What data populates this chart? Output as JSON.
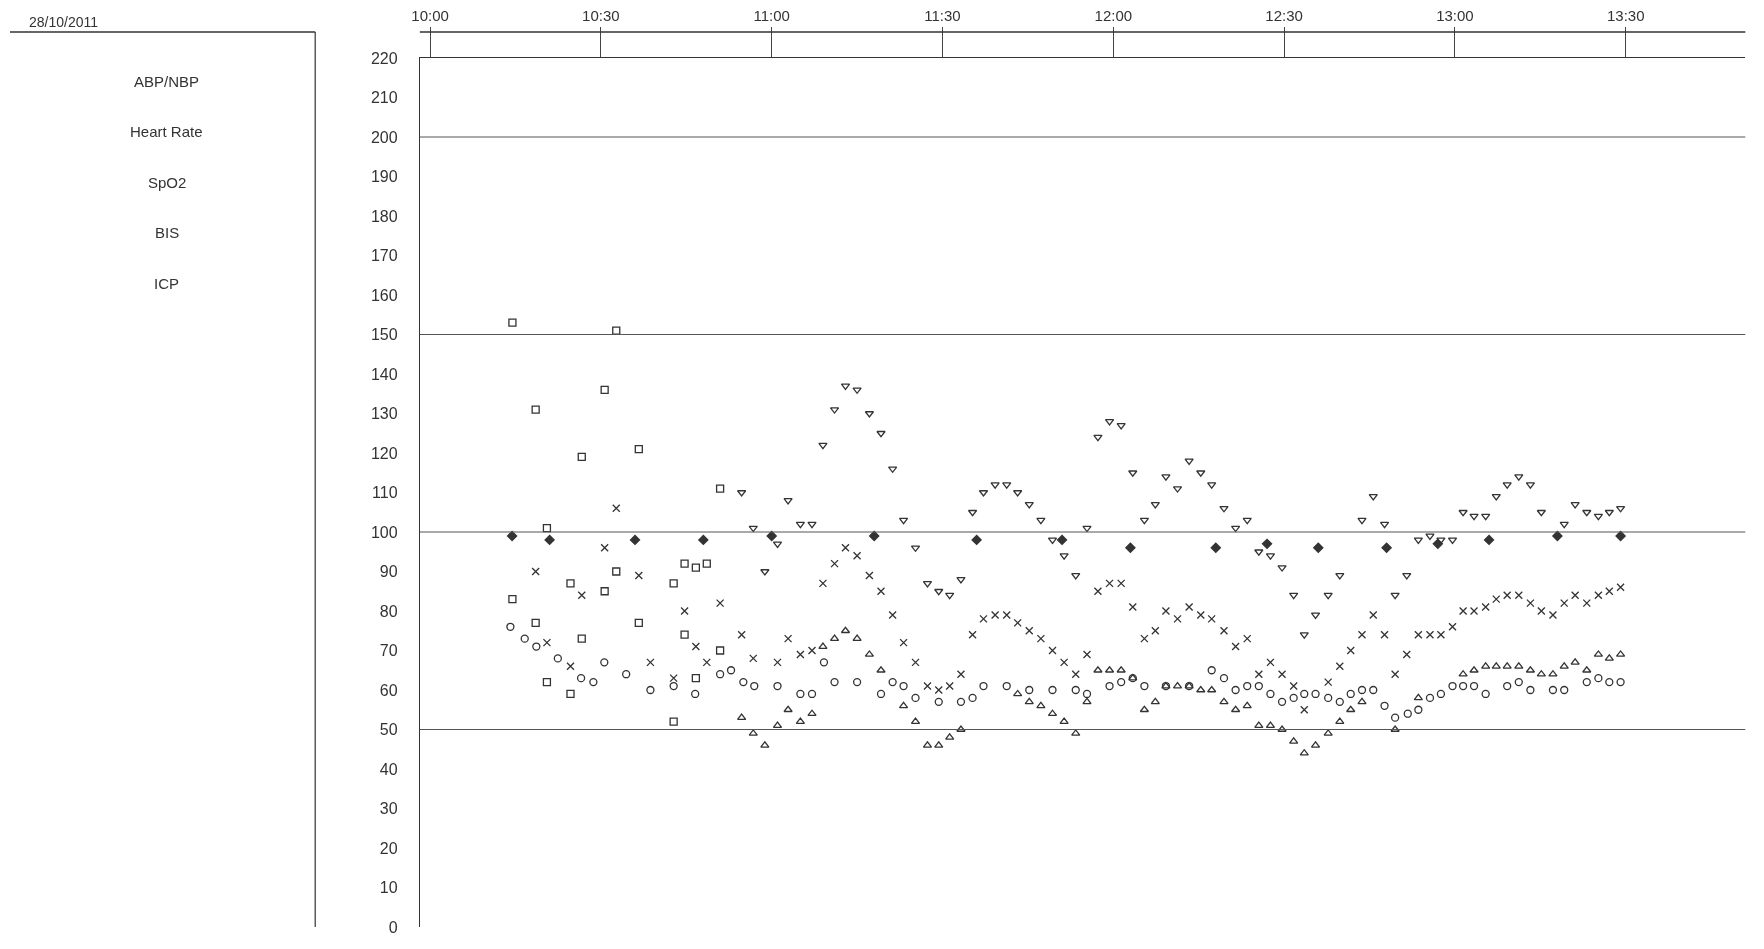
{
  "chart_data": {
    "type": "scatter",
    "annotations": [
      "28/10/2011",
      "ABP/NBP",
      "Heart Rate",
      "SpO2",
      "BIS",
      "ICP"
    ],
    "xlim": [
      9.97,
      13.85
    ],
    "xticks": [
      {
        "value": 10,
        "label": "10:00"
      },
      {
        "value": 10.5,
        "label": "10:30"
      },
      {
        "value": 11,
        "label": "11:00"
      },
      {
        "value": 11.5,
        "label": "11:30"
      },
      {
        "value": 12,
        "label": "12:00"
      },
      {
        "value": 12.5,
        "label": "12:30"
      },
      {
        "value": 13,
        "label": "13:00"
      },
      {
        "value": 13.5,
        "label": "13:30"
      }
    ],
    "ylim": [
      0,
      220
    ],
    "yticks": [
      0,
      10,
      20,
      30,
      40,
      50,
      60,
      70,
      80,
      90,
      100,
      110,
      120,
      130,
      140,
      150,
      160,
      170,
      180,
      190,
      200,
      210,
      220
    ],
    "grid": false,
    "ref_lines": [
      {
        "axis": "y",
        "value": 50,
        "color": "#555555"
      },
      {
        "axis": "y",
        "value": 100,
        "color": "#555555"
      },
      {
        "axis": "y",
        "value": 150,
        "color": "#555555"
      },
      {
        "axis": "y",
        "value": 200,
        "color": "#555555"
      }
    ],
    "series": [
      {
        "color": "#333333",
        "marker": "triangle-down",
        "x": [
          10.912,
          10.946,
          10.98,
          11.017,
          11.048,
          11.084,
          11.118,
          11.15,
          11.184,
          11.216,
          11.25,
          11.286,
          11.32,
          11.354,
          11.386,
          11.421,
          11.456,
          11.489,
          11.521,
          11.554,
          11.588,
          11.62,
          11.654,
          11.688,
          11.72,
          11.754,
          11.788,
          11.822,
          11.856,
          11.89,
          11.923,
          11.955,
          11.989,
          12.023,
          12.057,
          12.091,
          12.123,
          12.154,
          12.188,
          12.222,
          12.256,
          12.288,
          12.324,
          12.358,
          12.392,
          12.426,
          12.46,
          12.494,
          12.528,
          12.559,
          12.592,
          12.629,
          12.663,
          12.695,
          12.728,
          12.761,
          12.794,
          12.825,
          12.859,
          12.893,
          12.927,
          12.959,
          12.993,
          13.024,
          13.056,
          13.09,
          13.121,
          13.153,
          13.187,
          13.221,
          13.253,
          13.287,
          13.32,
          13.352,
          13.386,
          13.42,
          13.452,
          13.485
        ],
        "values": [
          110,
          101,
          90,
          97,
          108,
          102,
          102,
          122,
          131,
          137,
          136,
          130,
          125,
          116,
          103,
          96,
          87,
          85,
          84,
          88,
          105,
          110,
          112,
          112,
          110,
          107,
          103,
          98,
          94,
          89,
          101,
          124,
          128,
          127,
          115,
          103,
          107,
          114,
          111,
          118,
          115,
          112,
          106,
          101,
          103,
          95,
          94,
          91,
          84,
          74,
          79,
          84,
          89,
          null,
          103,
          109,
          102,
          84,
          89,
          98,
          99,
          98,
          98,
          105,
          104,
          104,
          109,
          112,
          114,
          112,
          105,
          null,
          102,
          107,
          105,
          104,
          105,
          106
        ]
      },
      {
        "color": "#333333",
        "marker": "triangle",
        "x": [
          10.912,
          10.946,
          10.98,
          11.017,
          11.048,
          11.084,
          11.118,
          11.15,
          11.184,
          11.216,
          11.25,
          11.286,
          11.32,
          11.354,
          11.386,
          11.421,
          11.456,
          11.489,
          11.521,
          11.554,
          11.588,
          11.62,
          11.654,
          11.688,
          11.72,
          11.754,
          11.788,
          11.822,
          11.856,
          11.89,
          11.923,
          11.955,
          11.989,
          12.023,
          12.057,
          12.091,
          12.123,
          12.154,
          12.188,
          12.222,
          12.256,
          12.288,
          12.324,
          12.358,
          12.392,
          12.426,
          12.46,
          12.494,
          12.528,
          12.559,
          12.592,
          12.629,
          12.663,
          12.695,
          12.728,
          12.761,
          12.794,
          12.825,
          12.859,
          12.893,
          12.927,
          12.959,
          12.993,
          13.024,
          13.056,
          13.09,
          13.121,
          13.153,
          13.187,
          13.221,
          13.253,
          13.287,
          13.32,
          13.352,
          13.386,
          13.42,
          13.452,
          13.485
        ],
        "values": [
          53,
          49,
          46,
          51,
          55,
          52,
          54,
          71,
          73,
          75,
          73,
          69,
          65,
          null,
          56,
          52,
          46,
          46,
          48,
          50,
          null,
          null,
          null,
          null,
          59,
          57,
          56,
          54,
          52,
          49,
          57,
          65,
          65,
          65,
          63,
          55,
          57,
          61,
          61,
          61,
          60,
          60,
          57,
          55,
          56,
          51,
          51,
          50,
          47,
          44,
          46,
          49,
          52,
          55,
          57,
          null,
          null,
          50,
          null,
          58,
          null,
          null,
          null,
          64,
          65,
          66,
          66,
          66,
          66,
          65,
          64,
          64,
          66,
          67,
          65,
          69,
          68,
          69
        ]
      },
      {
        "color": "#333333",
        "marker": "cross",
        "x": [
          10.912,
          10.946,
          10.98,
          11.017,
          11.048,
          11.084,
          11.118,
          11.15,
          11.184,
          11.216,
          11.25,
          11.286,
          11.32,
          11.354,
          11.386,
          11.421,
          11.456,
          11.489,
          11.521,
          11.554,
          11.588,
          11.62,
          11.654,
          11.688,
          11.72,
          11.754,
          11.788,
          11.822,
          11.856,
          11.89,
          11.923,
          11.955,
          11.989,
          12.023,
          12.057,
          12.091,
          12.123,
          12.154,
          12.188,
          12.222,
          12.256,
          12.288,
          12.324,
          12.358,
          12.392,
          12.426,
          12.46,
          12.494,
          12.528,
          12.559,
          12.592,
          12.629,
          12.663,
          12.695,
          12.728,
          12.761,
          12.794,
          12.825,
          12.859,
          12.893,
          12.927,
          12.959,
          12.993,
          13.024,
          13.056,
          13.09,
          13.121,
          13.153,
          13.187,
          13.221,
          13.253,
          13.287,
          13.32,
          13.352,
          13.386,
          13.42,
          13.452,
          13.485
        ],
        "values": [
          74,
          68,
          null,
          67,
          73,
          69,
          70,
          87,
          92,
          96,
          94,
          89,
          85,
          79,
          72,
          67,
          61,
          60,
          61,
          64,
          74,
          78,
          79,
          79,
          77,
          75,
          73,
          70,
          67,
          64,
          69,
          85,
          87,
          87,
          81,
          73,
          75,
          80,
          78,
          81,
          79,
          78,
          75,
          71,
          73,
          64,
          67,
          64,
          61,
          55,
          null,
          62,
          66,
          70,
          74,
          79,
          74,
          64,
          69,
          74,
          74,
          74,
          76,
          80,
          80,
          81,
          83,
          84,
          84,
          82,
          80,
          79,
          82,
          84,
          82,
          84,
          85,
          86
        ]
      },
      {
        "color": "#333333",
        "marker": "square",
        "x": [
          10.241,
          10.309,
          10.342,
          10.411,
          10.444,
          10.511,
          10.545,
          10.611,
          10.713,
          10.745,
          10.778,
          10.81,
          10.849
        ],
        "values": [
          153,
          131,
          101,
          87,
          119,
          136,
          151,
          121,
          87,
          92,
          91,
          92,
          111
        ]
      },
      {
        "color": "#333333",
        "marker": "square",
        "x": [
          10.241,
          10.309,
          10.342,
          10.411,
          10.444,
          10.511,
          10.545,
          10.611,
          10.713,
          10.745,
          10.778,
          10.849
        ],
        "values": [
          83,
          77,
          62,
          59,
          73,
          85,
          90,
          77,
          52,
          74,
          63,
          70
        ]
      },
      {
        "color": "#333333",
        "marker": "cross",
        "x": [
          10.309,
          10.342,
          10.411,
          10.444,
          10.511,
          10.545,
          10.611,
          10.645,
          10.713,
          10.745,
          10.778,
          10.81,
          10.849
        ],
        "values": [
          90,
          72,
          66,
          84,
          96,
          106,
          89,
          67,
          63,
          80,
          71,
          67,
          82
        ]
      },
      {
        "color": "#333333",
        "marker": "circle",
        "x": [
          10.235,
          10.277,
          10.311,
          10.374,
          10.442,
          10.478,
          10.51,
          10.574,
          10.645,
          10.713,
          10.776,
          10.849,
          10.881,
          10.917,
          10.949,
          11.017,
          11.084,
          11.118,
          11.153,
          11.184,
          11.25,
          11.32,
          11.354,
          11.386,
          11.421,
          11.489,
          11.554,
          11.588,
          11.62,
          11.688,
          11.754,
          11.822,
          11.89,
          11.923,
          11.989,
          12.023,
          12.057,
          12.091,
          12.154,
          12.222,
          12.288,
          12.324,
          12.358,
          12.392,
          12.426,
          12.46,
          12.494,
          12.528,
          12.559,
          12.592,
          12.629,
          12.663,
          12.695,
          12.728,
          12.761,
          12.794,
          12.825,
          12.862,
          12.893,
          12.927,
          12.959,
          12.993,
          13.024,
          13.056,
          13.09,
          13.153,
          13.187,
          13.221,
          13.287,
          13.32,
          13.386,
          13.42,
          13.452,
          13.485
        ],
        "values": [
          76,
          73,
          71,
          68,
          63,
          62,
          67,
          64,
          60,
          61,
          59,
          64,
          65,
          62,
          61,
          61,
          59,
          59,
          67,
          62,
          62,
          59,
          62,
          61,
          58,
          57,
          57,
          58,
          61,
          61,
          60,
          60,
          60,
          59,
          61,
          62,
          63,
          61,
          61,
          61,
          65,
          63,
          60,
          61,
          61,
          59,
          57,
          58,
          59,
          59,
          58,
          57,
          59,
          60,
          60,
          56,
          53,
          54,
          55,
          58,
          59,
          61,
          61,
          61,
          59,
          61,
          62,
          60,
          60,
          60,
          62,
          63,
          62,
          62
        ]
      },
      {
        "color": "#333333",
        "marker": "diamond",
        "x": [
          10.24,
          10.35,
          10.6,
          10.8,
          11.0,
          11.3,
          11.6,
          11.85,
          12.05,
          12.3,
          12.45,
          12.6,
          12.8,
          12.95,
          13.1,
          13.3,
          13.485
        ],
        "values": [
          99,
          98,
          98,
          98,
          99,
          99,
          98,
          98,
          96,
          96,
          97,
          96,
          96,
          97,
          98,
          99,
          99
        ]
      }
    ]
  }
}
